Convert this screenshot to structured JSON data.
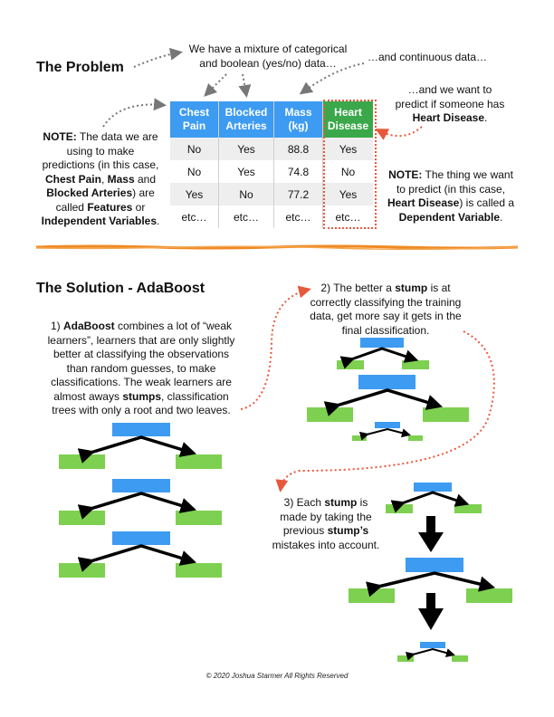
{
  "problem": {
    "heading": "The Problem",
    "note_mixture_line1": "We have a mixture of categorical",
    "note_mixture_line2": "and boolean (yes/no) data…",
    "note_continuous": "…and continuous data…",
    "note_predict_line1": "…and we want to",
    "note_predict_line2": "predict if someone has",
    "note_predict_bold": "Heart Disease",
    "note_features": {
      "l1_bold": "NOTE:",
      "l1": " The data we are",
      "l2": "using to make",
      "l3": "predictions (in this case,",
      "l4_b1": "Chest Pain",
      "l4_m": ", ",
      "l4_b2": "Mass",
      "l4_e": " and",
      "l5_b": "Blocked Arteries",
      "l5": ") are",
      "l6": "called ",
      "l6_b": "Features",
      "l6_e": " or",
      "l7_b": "Independent Variables",
      "l7": "."
    },
    "note_dependent": {
      "l1_bold": "NOTE:",
      "l1": " The thing we want",
      "l2": "to predict (in this case,",
      "l3_b": "Heart Disease",
      "l3": ") is called a",
      "l4_b": "Dependent Variable",
      "l4": "."
    },
    "table": {
      "headers": [
        {
          "line1": "Chest",
          "line2": "Pain"
        },
        {
          "line1": "Blocked",
          "line2": "Arteries"
        },
        {
          "line1": "Mass",
          "line2": "(kg)"
        },
        {
          "line1": "Heart",
          "line2": "Disease"
        }
      ],
      "rows": [
        [
          "No",
          "Yes",
          "88.8",
          "Yes"
        ],
        [
          "No",
          "Yes",
          "74.8",
          "No"
        ],
        [
          "Yes",
          "No",
          "77.2",
          "Yes"
        ],
        [
          "etc…",
          "etc…",
          "etc…",
          "etc…"
        ]
      ]
    }
  },
  "solution": {
    "heading": "The Solution - AdaBoost",
    "step1": {
      "l1_a": "1) ",
      "l1_b": "AdaBoost",
      "l1_c": " combines a lot of “weak",
      "l2": "learners”, learners that are only slightly",
      "l3": "better at classifying the observations",
      "l4": "than random guesses, to make",
      "l5": "classifications. The weak learners are",
      "l6_a": "almost aways ",
      "l6_b": "stumps",
      "l6_c": ", classification",
      "l7": "trees with only a root and two leaves."
    },
    "step2": {
      "l1_a": "2) The better a ",
      "l1_b": "stump",
      "l1_c": " is at",
      "l2": "correctly classifying the training",
      "l3": "data, get more say it gets in the",
      "l4": "final classification."
    },
    "step3": {
      "l1_a": "3) Each ",
      "l1_b": "stump",
      "l1_c": " is",
      "l2": "made by taking the",
      "l3_a": "previous ",
      "l3_b": "stump’s",
      "l4": "mistakes into account."
    }
  },
  "footer": "© 2020 Joshua Starmer All Rights Reserved",
  "colors": {
    "root": "#3d9bf2",
    "leaf": "#7ed050",
    "heart_header": "#3aa84a",
    "dotted_arrow_gray": "#777777",
    "dotted_arrow_red": "#e8593b",
    "divider": "#f08a24"
  }
}
